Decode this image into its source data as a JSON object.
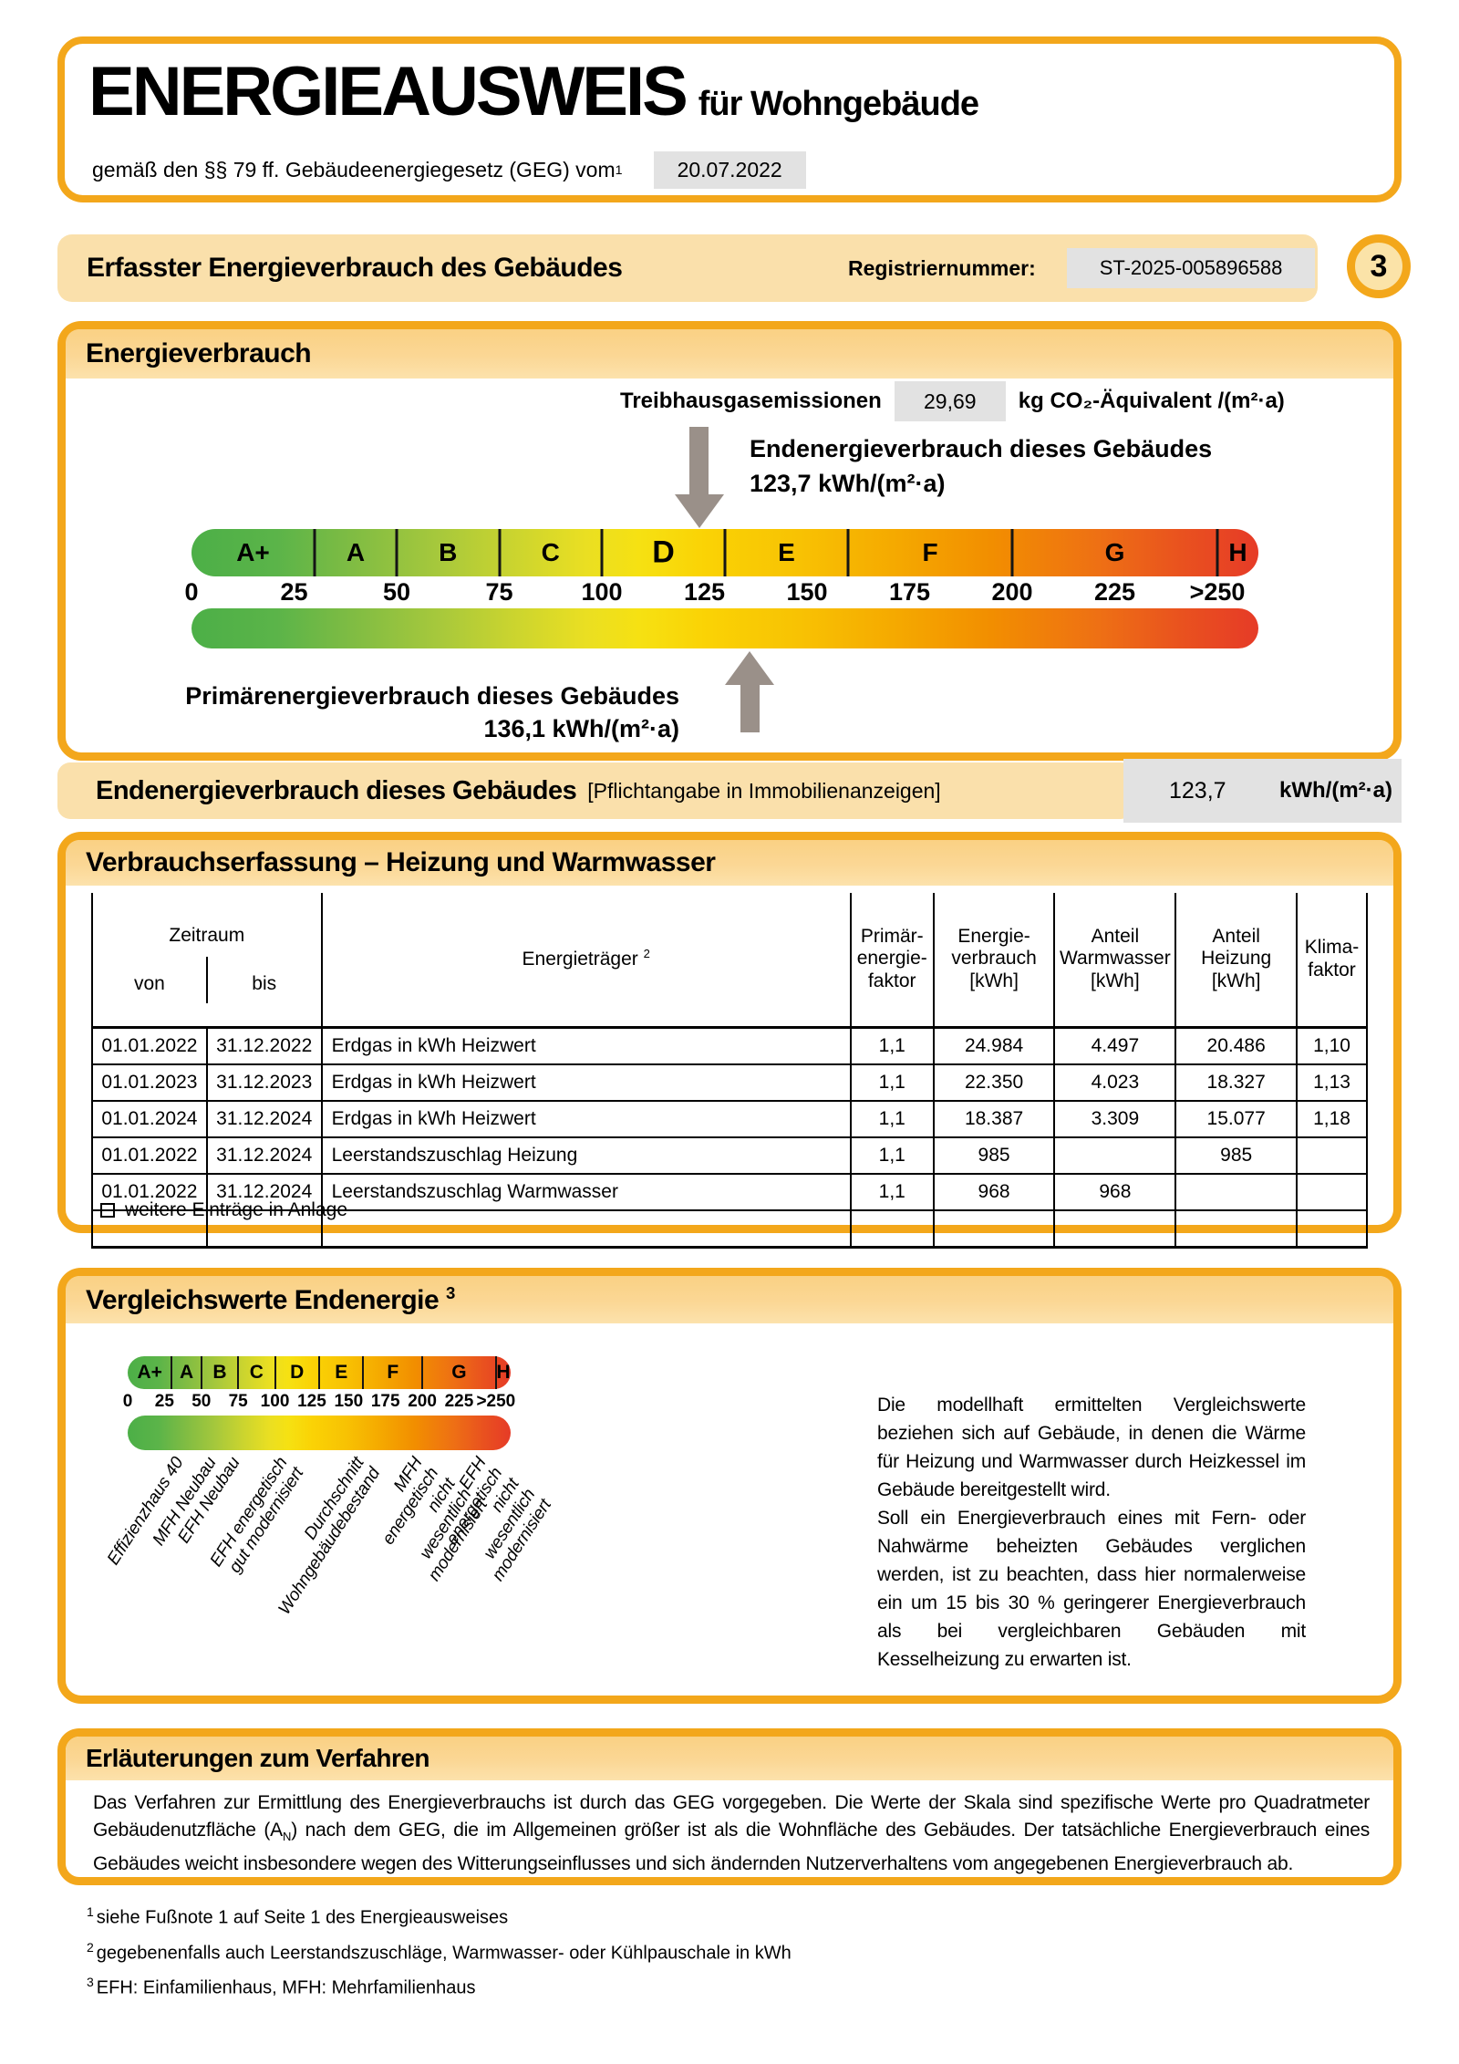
{
  "page": {
    "title": "ENERGIEAUSWEIS",
    "subtitle": "für Wohngebäude",
    "law_line": "gemäß den §§ 79 ff. Gebäudeenergiegesetz (GEG) vom",
    "law_sup": "1",
    "law_date": "20.07.2022",
    "page_number": "3"
  },
  "header_band": {
    "title": "Erfasster Energieverbrauch des Gebäudes",
    "reg_label": "Registriernummer:",
    "reg_value": "ST-2025-005896588"
  },
  "energy": {
    "title": "Energieverbrauch",
    "ghg_label": "Treibhausgasemissionen",
    "ghg_value": "29,69",
    "ghg_unit": "kg CO₂-Äquivalent /(m²·a)",
    "end_label": "Endenergieverbrauch dieses Gebäudes",
    "end_value_text": "123,7 kWh/(m²·a)",
    "end_value": 123.7,
    "primary_label": "Primärenergieverbrauch dieses Gebäudes",
    "primary_value_text": "136,1 kWh/(m²·a)",
    "primary_value": 136.1
  },
  "scale": {
    "max": 260,
    "current_class": "D",
    "classes": [
      {
        "label": "A+",
        "from": 0,
        "to": 30
      },
      {
        "label": "A",
        "from": 30,
        "to": 50
      },
      {
        "label": "B",
        "from": 50,
        "to": 75
      },
      {
        "label": "C",
        "from": 75,
        "to": 100
      },
      {
        "label": "D",
        "from": 100,
        "to": 130
      },
      {
        "label": "E",
        "from": 130,
        "to": 160
      },
      {
        "label": "F",
        "from": 160,
        "to": 200
      },
      {
        "label": "G",
        "from": 200,
        "to": 250
      },
      {
        "label": "H",
        "from": 250,
        "to": 260
      }
    ],
    "ticks": [
      {
        "label": "0",
        "value": 0
      },
      {
        "label": "25",
        "value": 25
      },
      {
        "label": "50",
        "value": 50
      },
      {
        "label": "75",
        "value": 75
      },
      {
        "label": "100",
        "value": 100
      },
      {
        "label": "125",
        "value": 125
      },
      {
        "label": "150",
        "value": 150
      },
      {
        "label": "175",
        "value": 175
      },
      {
        "label": "200",
        "value": 200
      },
      {
        "label": "225",
        "value": 225
      },
      {
        "label": ">250",
        "value": 250
      }
    ]
  },
  "end_band": {
    "label": "Endenergieverbrauch dieses Gebäudes",
    "note": "[Pflichtangabe in Immobilienanzeigen]",
    "value": "123,7",
    "unit": "kWh/(m²·a)"
  },
  "table": {
    "title": "Verbrauchserfassung – Heizung und Warmwasser",
    "headers": {
      "zeitraum": "Zeitraum",
      "von": "von",
      "bis": "bis",
      "energietraeger": "Energieträger ",
      "energietraeger_sup": "2",
      "pef": "Primär-\nenergie-\nfaktor",
      "verbrauch": "Energie-\nverbrauch\n[kWh]",
      "anteil_ww": "Anteil\nWarmwasser\n[kWh]",
      "anteil_hz": "Anteil\nHeizung\n[kWh]",
      "klima": "Klima-\nfaktor"
    },
    "rows": [
      [
        "01.01.2022",
        "31.12.2022",
        "Erdgas in kWh Heizwert",
        "1,1",
        "24.984",
        "4.497",
        "20.486",
        "1,10"
      ],
      [
        "01.01.2023",
        "31.12.2023",
        "Erdgas in kWh Heizwert",
        "1,1",
        "22.350",
        "4.023",
        "18.327",
        "1,13"
      ],
      [
        "01.01.2024",
        "31.12.2024",
        "Erdgas in kWh Heizwert",
        "1,1",
        "18.387",
        "3.309",
        "15.077",
        "1,18"
      ],
      [
        "01.01.2022",
        "31.12.2024",
        "Leerstandszuschlag Heizung",
        "1,1",
        "985",
        "",
        "985",
        ""
      ],
      [
        "01.01.2022",
        "31.12.2024",
        "Leerstandszuschlag Warmwasser",
        "1,1",
        "968",
        "968",
        "",
        ""
      ],
      [
        "",
        "",
        "",
        "",
        "",
        "",
        "",
        ""
      ]
    ],
    "checkbox_label": "weitere Einträge in Anlage"
  },
  "comparison": {
    "title": "Vergleichswerte Endenergie ",
    "title_sup": "3",
    "markers": [
      {
        "label": "Effizienzhaus 40",
        "value": 30
      },
      {
        "label": "MFH Neubau",
        "value": 52
      },
      {
        "label": "EFH Neubau",
        "value": 68
      },
      {
        "label": "EFH energetisch\ngut modernisiert",
        "value": 100
      },
      {
        "label": "Durchschnitt\nWohngebäudebestand",
        "value": 152
      },
      {
        "label": "MFH energetisch nicht\nwesentlich modernisiert",
        "value": 192
      },
      {
        "label": "EFH energetisch nicht\nwesentlich modernisiert",
        "value": 235
      }
    ],
    "paragraph1": "Die modellhaft ermittelten Vergleichswerte beziehen sich auf Gebäude, in denen die Wärme für Heizung und Warmwasser durch Heizkessel im Gebäude bereitgestellt wird.",
    "paragraph2": "Soll ein Energieverbrauch eines mit Fern- oder Nahwärme beheizten Gebäudes verglichen werden, ist zu beachten, dass hier normalerweise ein um 15 bis 30 % geringerer Energieverbrauch als bei vergleichbaren Gebäuden mit Kesselheizung zu erwarten ist."
  },
  "explanation": {
    "title": "Erläuterungen zum Verfahren",
    "p_before": "Das Verfahren zur Ermittlung des Energieverbrauchs ist durch das GEG vorgegeben. Die Werte der Skala sind spezifische Werte pro Quadratmeter Gebäudenutzfläche (A",
    "p_sub": "N",
    "p_after": ") nach dem GEG, die im Allgemeinen größer ist als die Wohnfläche des Gebäudes. Der tatsächliche Energieverbrauch eines Gebäudes weicht insbesondere wegen des Witterungseinflusses und sich ändernden Nutzerverhaltens vom angegebenen Energieverbrauch ab."
  },
  "footnotes": [
    {
      "sup": "1",
      "text": "siehe Fußnote 1 auf Seite 1 des Energieausweises"
    },
    {
      "sup": "2",
      "text": "gegebenenfalls auch Leerstandszuschläge, Warmwasser- oder Kühlpauschale in kWh"
    },
    {
      "sup": "3",
      "text": "EFH: Einfamilienhaus, MFH: Mehrfamilienhaus"
    }
  ],
  "colors": {
    "frame_orange": "#F3A71B",
    "strip_amber": "#FBD58E",
    "band_amber": "#FAE0AB",
    "value_gray": "#E2E2E2",
    "arrow_gray": "#9A9089",
    "scale_green": "#4CAF47",
    "scale_yellow": "#FAD305",
    "scale_red": "#E63B27"
  }
}
